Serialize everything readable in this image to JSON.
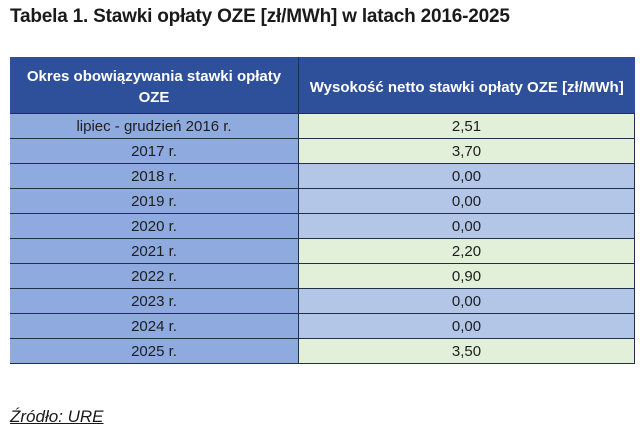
{
  "title": "Tabela 1. Stawki opłaty OZE [zł/MWh] w latach 2016-2025",
  "table": {
    "headers": [
      "Okres obowiązywania stawki opłaty OZE",
      "Wysokość netto stawki opłaty OZE [zł/MWh]"
    ],
    "rows": [
      {
        "period": "lipiec - grudzień 2016 r.",
        "value": "2,51",
        "tone": "green"
      },
      {
        "period": "2017 r.",
        "value": "3,70",
        "tone": "green"
      },
      {
        "period": "2018 r.",
        "value": "0,00",
        "tone": "blue"
      },
      {
        "period": "2019 r.",
        "value": "0,00",
        "tone": "blue"
      },
      {
        "period": "2020 r.",
        "value": "0,00",
        "tone": "blue"
      },
      {
        "period": "2021 r.",
        "value": "2,20",
        "tone": "green"
      },
      {
        "period": "2022 r.",
        "value": "0,90",
        "tone": "green"
      },
      {
        "period": "2023 r.",
        "value": "0,00",
        "tone": "blue"
      },
      {
        "period": "2024 r.",
        "value": "0,00",
        "tone": "blue"
      },
      {
        "period": "2025 r.",
        "value": "3,50",
        "tone": "green"
      }
    ]
  },
  "colors": {
    "header_bg": "#2e4f9a",
    "period_bg": "#8eaadf",
    "value_green_bg": "#e2efd9",
    "value_blue_bg": "#b4c6e7"
  },
  "source": "Źródło: URE"
}
